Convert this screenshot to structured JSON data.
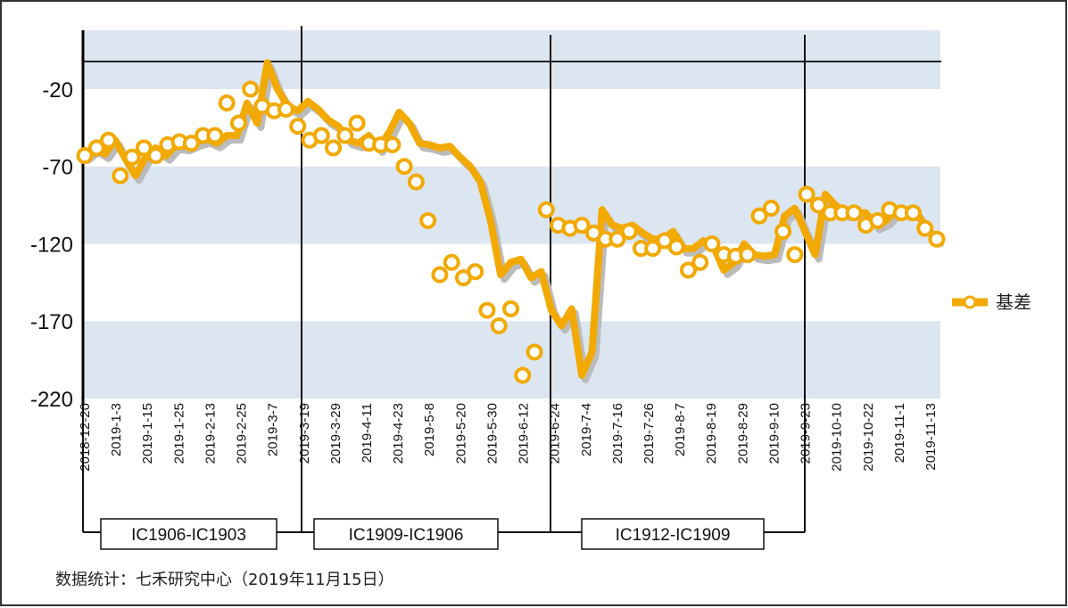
{
  "chart_data": {
    "type": "line",
    "title": "",
    "xlabel": "",
    "ylabel": "",
    "ylim": [
      -220,
      18
    ],
    "yticks": [
      -20,
      -70,
      -120,
      -170,
      -220
    ],
    "grid": "alternating horizontal bands",
    "legend_position": "right",
    "colors": {
      "series": "#F2A900",
      "shadow": "#BBBBBB",
      "band": "#DCE6F1",
      "marker_face": "#FFFFFF"
    },
    "x_tick_labels": [
      "2018-12-20",
      "2019-1-3",
      "2019-1-15",
      "2019-1-25",
      "2019-2-13",
      "2019-2-25",
      "2019-3-7",
      "2019-3-19",
      "2019-3-29",
      "2019-4-11",
      "2019-4-23",
      "2019-5-8",
      "2019-5-20",
      "2019-5-30",
      "2019-6-12",
      "2019-6-24",
      "2019-7-4",
      "2019-7-16",
      "2019-7-26",
      "2019-8-7",
      "2019-8-19",
      "2019-8-29",
      "2019-9-10",
      "2019-9-23",
      "2019-10-10",
      "2019-10-22",
      "2019-11-1",
      "2019-11-13"
    ],
    "series": [
      {
        "name": "基差",
        "values": [
          -63,
          -58,
          -62,
          -53,
          -65,
          -76,
          -64,
          -58,
          -63,
          -56,
          -57,
          -54,
          -52,
          -55,
          -50,
          -50,
          -29,
          -42,
          -3,
          -20,
          -31,
          -34,
          -28,
          -33,
          -40,
          -44,
          -53,
          -55,
          -50,
          -58,
          -48,
          -35,
          -42,
          -55,
          -56,
          -58,
          -57,
          -64,
          -70,
          -80,
          -105,
          -140,
          -132,
          -130,
          -142,
          -138,
          -163,
          -173,
          -162,
          -205,
          -190,
          -98,
          -108,
          -110,
          -108,
          -113,
          -117,
          -117,
          -112,
          -123,
          -123,
          -118,
          -122,
          -137,
          -132,
          -120,
          -127,
          -128,
          -127,
          -102,
          -97,
          -112,
          -127,
          -88,
          -95,
          -100,
          -100,
          -100,
          -108,
          -105,
          -98,
          -100,
          -100,
          -110,
          -117
        ],
        "markers": [
          -63,
          -58,
          -53,
          -76,
          -64,
          -58,
          -63,
          -56,
          -54,
          -55,
          -50,
          -50,
          -29,
          -42,
          -20,
          -31,
          -34,
          -33,
          -44,
          -53,
          -50,
          -58,
          -50,
          -42,
          -55,
          -56,
          -56,
          -70,
          -80,
          -105,
          -140,
          -132,
          -142,
          -138,
          -163,
          -173,
          -162,
          -205,
          -190,
          -98,
          -108,
          -110,
          -108,
          -113,
          -117,
          -117,
          -112,
          -123,
          -123,
          -118,
          -122,
          -137,
          -132,
          -120,
          -127,
          -128,
          -127,
          -102,
          -97,
          -112,
          -127,
          -88,
          -95,
          -100,
          -100,
          -100,
          -108,
          -105,
          -98,
          -100,
          -100,
          -110,
          -117
        ]
      }
    ],
    "contract_periods": [
      {
        "label": "IC1906-IC1903"
      },
      {
        "label": "IC1909-IC1906"
      },
      {
        "label": "IC1912-IC1909"
      }
    ]
  },
  "source_note": "数据统计：七禾研究中心（2019年11月15日）"
}
